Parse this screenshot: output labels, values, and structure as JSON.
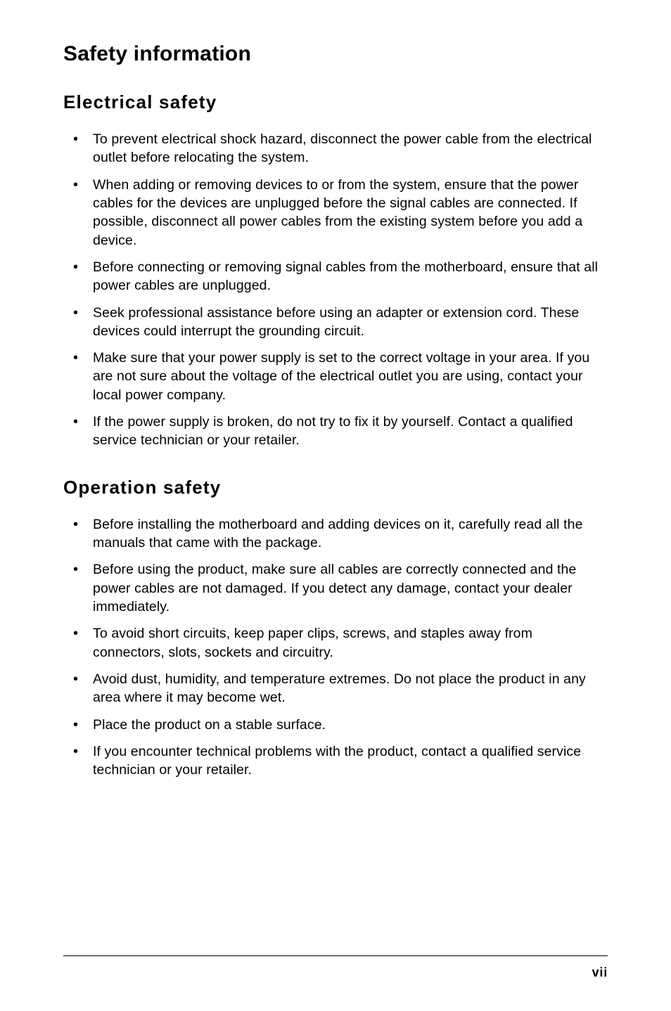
{
  "page": {
    "title": "Safety information",
    "page_number": "vii"
  },
  "sections": [
    {
      "heading": "Electrical safety",
      "items": [
        "To prevent electrical shock hazard, disconnect the power cable from the electrical outlet before relocating the system.",
        "When adding or removing devices to or from the system, ensure that the power cables for the devices are unplugged before the signal cables are connected. If possible, disconnect all power cables from the existing system before you add a device.",
        "Before connecting or removing signal cables from the motherboard, ensure that all power cables are unplugged.",
        "Seek professional assistance before using an adapter or extension cord. These devices could interrupt the grounding circuit.",
        "Make sure that your power supply is set to the correct voltage in your area. If you are not sure about the voltage of the electrical outlet you are using, contact your local power company.",
        "If the power supply is broken, do not try to fix it by yourself. Contact a qualified service technician or your retailer."
      ]
    },
    {
      "heading": "Operation safety",
      "items": [
        "Before installing the motherboard and adding devices on it, carefully read all the manuals that came with the package.",
        "Before using the product, make sure all cables are correctly connected and the power cables are not damaged. If you detect any damage, contact your dealer immediately.",
        "To avoid short circuits, keep paper clips, screws, and staples away from connectors, slots, sockets and circuitry.",
        "Avoid dust, humidity, and temperature extremes. Do not place the product in any area where it may become wet.",
        "Place the product on a stable surface.",
        "If you encounter technical problems with the product, contact a qualified service technician or your retailer."
      ]
    }
  ],
  "styles": {
    "background_color": "#ffffff",
    "text_color": "#000000",
    "title_fontsize": 30,
    "section_fontsize": 26,
    "body_fontsize": 19.5,
    "line_color": "#000000"
  }
}
